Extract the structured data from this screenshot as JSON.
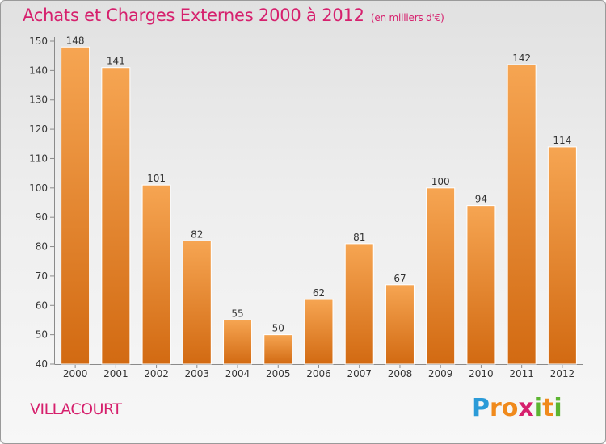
{
  "header": {
    "title": "Achats et Charges Externes 2000 à 2012",
    "subtitle": "(en milliers d'€)"
  },
  "footer": {
    "city": "VILLACOURT",
    "logo_letters": [
      "P",
      "r",
      "o",
      "x",
      "i",
      "t",
      "i"
    ],
    "logo_colors": [
      "#2b9bd8",
      "#f08a1c",
      "#f08a1c",
      "#d6206d",
      "#5cb531",
      "#f08a1c",
      "#5cb531"
    ]
  },
  "chart_data": {
    "type": "bar",
    "categories": [
      "2000",
      "2001",
      "2002",
      "2003",
      "2004",
      "2005",
      "2006",
      "2007",
      "2008",
      "2009",
      "2010",
      "2011",
      "2012"
    ],
    "values": [
      148,
      141,
      101,
      82,
      55,
      50,
      62,
      81,
      67,
      100,
      94,
      142,
      114
    ],
    "ylim": [
      40,
      150
    ],
    "yticks": [
      40,
      50,
      60,
      70,
      80,
      90,
      100,
      110,
      120,
      130,
      140,
      150
    ],
    "grid": false,
    "colors": {
      "bar_top": "#f6a552",
      "bar_bottom": "#d26a12",
      "axis": "#8a8a8a",
      "text": "#333333"
    }
  }
}
